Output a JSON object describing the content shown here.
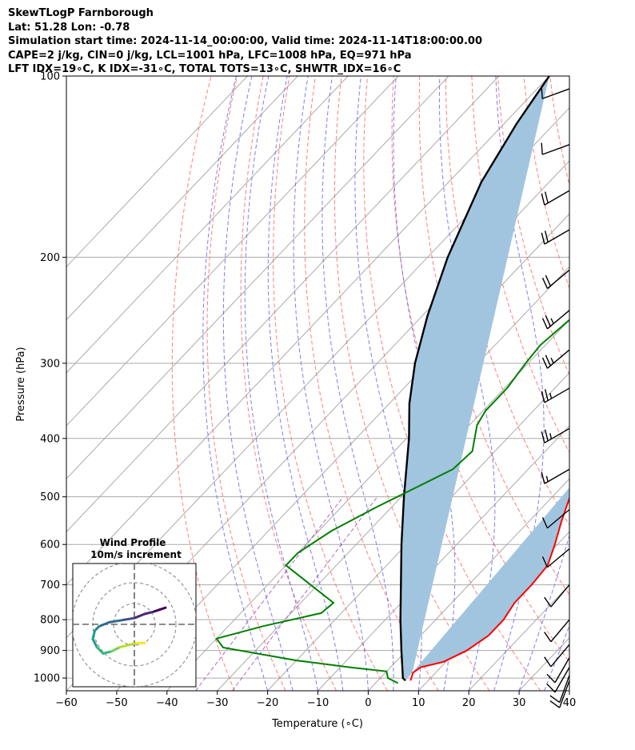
{
  "header": {
    "line1": "SkewTLogP Farnborough",
    "line2": "Lat: 51.28   Lon: -0.78",
    "line3": "Simulation start time: 2024-11-14_00:00:00, Valid time: 2024-11-14T18:00:00.00",
    "line4": "CAPE=2 j/kg, CIN=0 j/kg, LCL=1001 hPa, LFC=1008 hPa, EQ=971 hPa",
    "line5": "LFT IDX=19∘C, K IDX=-31∘C, TOTAL TOTS=13∘C, SHWTR_IDX=16∘C"
  },
  "chart_data": {
    "type": "line",
    "subtype": "skew-T log-P",
    "xlabel": "Temperature (∘C)",
    "ylabel": "Pressure (hPa)",
    "xlim": [
      -60,
      40
    ],
    "ylim": [
      1050,
      100
    ],
    "y_scale": "log",
    "x_ticks": [
      -60,
      -50,
      -40,
      -30,
      -20,
      -10,
      0,
      10,
      20,
      30,
      40
    ],
    "x_tick_labels": [
      "−60",
      "−50",
      "−40",
      "−30",
      "−20",
      "−10",
      "0",
      "10",
      "20",
      "30",
      "40"
    ],
    "y_ticks": [
      100,
      200,
      300,
      400,
      500,
      600,
      700,
      800,
      900,
      1000
    ],
    "y_tick_labels": [
      "100",
      "200",
      "300",
      "400",
      "500",
      "600",
      "700",
      "800",
      "900",
      "1000"
    ],
    "grid": true,
    "colors": {
      "temperature": "#ff0000",
      "dewpoint": "#008000",
      "parcel": "#000000",
      "fill": "#a2c5df",
      "dry_adiabat": "#ff6666",
      "moist_adiabat": "#6666ee",
      "mixing_ratio": "#9944bb",
      "isotherm": "#aaaaaa"
    },
    "series": [
      {
        "role": "temperature",
        "points": [
          [
            -6.5,
            100
          ],
          [
            -8.8,
            110
          ],
          [
            -11.5,
            125
          ],
          [
            -13.5,
            138
          ],
          [
            -15.2,
            147
          ],
          [
            -15.5,
            160
          ],
          [
            -15.0,
            180
          ],
          [
            -14.0,
            200
          ],
          [
            -14.5,
            215
          ],
          [
            -14.5,
            235
          ],
          [
            -13.0,
            255
          ],
          [
            -11.0,
            280
          ],
          [
            -9.5,
            300
          ],
          [
            -7.5,
            330
          ],
          [
            -5.5,
            360
          ],
          [
            -3.0,
            390
          ],
          [
            -1.5,
            410
          ],
          [
            1.0,
            450
          ],
          [
            3.5,
            500
          ],
          [
            6.5,
            550
          ],
          [
            9.5,
            600
          ],
          [
            12.0,
            650
          ],
          [
            12.5,
            700
          ],
          [
            12.5,
            750
          ],
          [
            13.5,
            800
          ],
          [
            13.5,
            850
          ],
          [
            12.0,
            900
          ],
          [
            9.5,
            940
          ],
          [
            6.0,
            960
          ],
          [
            5.5,
            980
          ],
          [
            6.5,
            1010
          ]
        ]
      },
      {
        "role": "dewpoint",
        "points": [
          [
            -16.5,
            100
          ],
          [
            -20.0,
            120
          ],
          [
            -23.5,
            140
          ],
          [
            -25.5,
            150
          ],
          [
            -25.5,
            160
          ],
          [
            -24.5,
            180
          ],
          [
            -26.0,
            200
          ],
          [
            -28.5,
            215
          ],
          [
            -29.0,
            235
          ],
          [
            -30.0,
            255
          ],
          [
            -31.0,
            280
          ],
          [
            -30.5,
            300
          ],
          [
            -29.5,
            330
          ],
          [
            -29.5,
            360
          ],
          [
            -28.5,
            380
          ],
          [
            -24.5,
            420
          ],
          [
            -25.0,
            450
          ],
          [
            -33.0,
            520
          ],
          [
            -37.5,
            570
          ],
          [
            -40.0,
            620
          ],
          [
            -40.0,
            650
          ],
          [
            -23.5,
            750
          ],
          [
            -24.0,
            780
          ],
          [
            -33.0,
            820
          ],
          [
            -40.0,
            860
          ],
          [
            -37.0,
            890
          ],
          [
            -20.0,
            935
          ],
          [
            -8.0,
            960
          ],
          [
            0.0,
            975
          ],
          [
            1.5,
            1000
          ],
          [
            4.5,
            1020
          ]
        ]
      },
      {
        "role": "parcel",
        "points": [
          [
            5.5,
            1010
          ],
          [
            4.5,
            1000
          ],
          [
            -1.0,
            900
          ],
          [
            -7.0,
            800
          ],
          [
            -13.5,
            700
          ],
          [
            -21.0,
            600
          ],
          [
            -29.5,
            500
          ],
          [
            -39.5,
            400
          ],
          [
            -46.0,
            350
          ],
          [
            -52.5,
            300
          ],
          [
            -59.0,
            250
          ],
          [
            -66.0,
            200
          ],
          [
            -73.5,
            150
          ],
          [
            -77.5,
            120
          ],
          [
            -80.0,
            100
          ]
        ]
      }
    ],
    "wind_barbs": {
      "color": "#000000",
      "levels_hPa": [
        105,
        130,
        155,
        180,
        210,
        245,
        285,
        330,
        385,
        450,
        525,
        610,
        700,
        800,
        880,
        925,
        960,
        990,
        1010
      ],
      "speed_kt": [
        10,
        10,
        20,
        20,
        20,
        25,
        25,
        25,
        25,
        15,
        10,
        10,
        10,
        10,
        10,
        10,
        10,
        10,
        10
      ],
      "direction_deg": [
        250,
        250,
        240,
        240,
        230,
        230,
        230,
        240,
        240,
        240,
        230,
        230,
        220,
        220,
        220,
        210,
        210,
        200,
        200
      ]
    },
    "hodograph": {
      "title": "Wind Profile",
      "subtitle": "10m/s increment",
      "rings_m_s": [
        10,
        20,
        30
      ],
      "trace": [
        [
          15,
          8
        ],
        [
          12,
          7
        ],
        [
          9,
          6
        ],
        [
          5,
          5
        ],
        [
          0,
          3
        ],
        [
          -6,
          2
        ],
        [
          -12,
          1
        ],
        [
          -17,
          -1
        ],
        [
          -19,
          -3
        ],
        [
          -20,
          -7
        ],
        [
          -18,
          -11
        ],
        [
          -15,
          -14
        ],
        [
          -11,
          -13
        ],
        [
          -7,
          -11
        ],
        [
          -3,
          -10
        ],
        [
          1,
          -9
        ],
        [
          5,
          -9
        ]
      ]
    }
  }
}
